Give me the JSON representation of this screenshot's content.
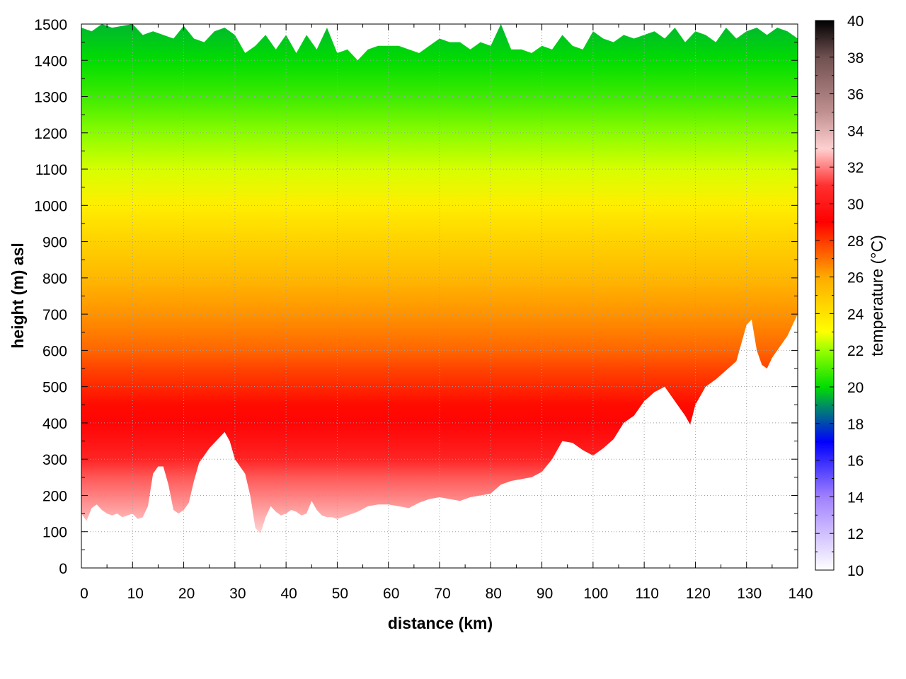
{
  "chart_data": {
    "type": "heatmap",
    "title": "",
    "xlabel": "distance (km)",
    "ylabel": "height (m) asl",
    "colorbar_label": "temperature (°C)",
    "xlim": [
      0,
      140
    ],
    "ylim": [
      0,
      1500
    ],
    "clim": [
      10,
      40
    ],
    "x_ticks": [
      0,
      10,
      20,
      30,
      40,
      50,
      60,
      70,
      80,
      90,
      100,
      110,
      120,
      130,
      140
    ],
    "y_ticks": [
      0,
      100,
      200,
      300,
      400,
      500,
      600,
      700,
      800,
      900,
      1000,
      1100,
      1200,
      1300,
      1400,
      1500
    ],
    "colorbar_ticks": [
      10,
      12,
      14,
      16,
      18,
      20,
      22,
      24,
      26,
      28,
      30,
      32,
      34,
      36,
      38,
      40
    ],
    "grid": true,
    "colormap_stops": [
      {
        "value": 10,
        "color": "#ffffff"
      },
      {
        "value": 14,
        "color": "#a080ff"
      },
      {
        "value": 17,
        "color": "#0000ff"
      },
      {
        "value": 19,
        "color": "#009060"
      },
      {
        "value": 20,
        "color": "#00dd00"
      },
      {
        "value": 22,
        "color": "#99ff00"
      },
      {
        "value": 23,
        "color": "#ffff00"
      },
      {
        "value": 26,
        "color": "#ffaa00"
      },
      {
        "value": 29,
        "color": "#ff0000"
      },
      {
        "value": 31,
        "color": "#ff3030"
      },
      {
        "value": 33,
        "color": "#ffd0d0"
      },
      {
        "value": 35,
        "color": "#c09090"
      },
      {
        "value": 38,
        "color": "#705050"
      },
      {
        "value": 40,
        "color": "#000000"
      }
    ],
    "terrain_bottom": {
      "distance_km": [
        0,
        1,
        2,
        3,
        4,
        5,
        6,
        7,
        8,
        9,
        10,
        11,
        12,
        13,
        14,
        15,
        16,
        17,
        18,
        19,
        20,
        21,
        22,
        23,
        24,
        25,
        26,
        27,
        28,
        29,
        30,
        31,
        32,
        33,
        34,
        35,
        36,
        37,
        38,
        39,
        40,
        41,
        42,
        43,
        44,
        45,
        46,
        47,
        48,
        49,
        50,
        52,
        54,
        56,
        58,
        60,
        62,
        64,
        66,
        68,
        70,
        72,
        74,
        76,
        78,
        80,
        82,
        84,
        86,
        88,
        90,
        92,
        94,
        96,
        98,
        100,
        102,
        104,
        106,
        108,
        110,
        112,
        114,
        116,
        118,
        119,
        120,
        122,
        124,
        126,
        128,
        130,
        131,
        132,
        133,
        134,
        135,
        136,
        138,
        140
      ],
      "height_m": [
        150,
        130,
        165,
        175,
        160,
        150,
        145,
        150,
        140,
        145,
        150,
        135,
        140,
        170,
        260,
        280,
        280,
        230,
        160,
        150,
        160,
        180,
        240,
        290,
        310,
        330,
        345,
        360,
        375,
        350,
        300,
        280,
        260,
        200,
        110,
        95,
        140,
        170,
        155,
        145,
        150,
        160,
        155,
        145,
        150,
        185,
        160,
        145,
        140,
        140,
        135,
        145,
        155,
        170,
        175,
        175,
        170,
        165,
        180,
        190,
        195,
        190,
        185,
        195,
        200,
        205,
        230,
        240,
        245,
        250,
        265,
        300,
        350,
        345,
        325,
        310,
        330,
        355,
        400,
        420,
        460,
        485,
        500,
        460,
        420,
        395,
        450,
        500,
        520,
        545,
        570,
        670,
        685,
        600,
        560,
        550,
        580,
        600,
        640,
        700
      ]
    },
    "data_top": {
      "distance_km": [
        0,
        2,
        4,
        6,
        8,
        10,
        12,
        14,
        16,
        18,
        20,
        22,
        24,
        26,
        28,
        30,
        32,
        34,
        36,
        38,
        40,
        42,
        44,
        46,
        48,
        50,
        52,
        54,
        56,
        58,
        60,
        62,
        64,
        66,
        68,
        70,
        72,
        74,
        76,
        78,
        80,
        82,
        84,
        86,
        88,
        90,
        92,
        94,
        96,
        98,
        100,
        102,
        104,
        106,
        108,
        110,
        112,
        114,
        116,
        118,
        120,
        122,
        124,
        126,
        128,
        130,
        132,
        134,
        136,
        138,
        140
      ],
      "height_m": [
        1490,
        1480,
        1500,
        1490,
        1495,
        1500,
        1470,
        1480,
        1470,
        1460,
        1495,
        1460,
        1450,
        1480,
        1490,
        1470,
        1420,
        1440,
        1470,
        1430,
        1470,
        1420,
        1470,
        1430,
        1490,
        1420,
        1430,
        1400,
        1430,
        1440,
        1440,
        1440,
        1430,
        1420,
        1440,
        1460,
        1450,
        1450,
        1430,
        1450,
        1440,
        1500,
        1430,
        1430,
        1420,
        1440,
        1430,
        1470,
        1440,
        1430,
        1480,
        1460,
        1450,
        1470,
        1460,
        1470,
        1480,
        1460,
        1490,
        1450,
        1480,
        1470,
        1450,
        1490,
        1460,
        1480,
        1490,
        1470,
        1490,
        1480,
        1460
      ]
    },
    "temperature_profile": {
      "height_m": [
        0,
        100,
        150,
        200,
        250,
        300,
        350,
        400,
        450,
        500,
        550,
        600,
        700,
        800,
        900,
        1000,
        1100,
        1200,
        1300,
        1400,
        1500
      ],
      "temperature_c": [
        33,
        33,
        32.5,
        32,
        31.5,
        30.5,
        29.8,
        29.2,
        28.8,
        28.3,
        27.8,
        27.2,
        26.4,
        25.5,
        24.6,
        23.6,
        22.6,
        21.8,
        20.8,
        20.0,
        19.5
      ]
    }
  }
}
